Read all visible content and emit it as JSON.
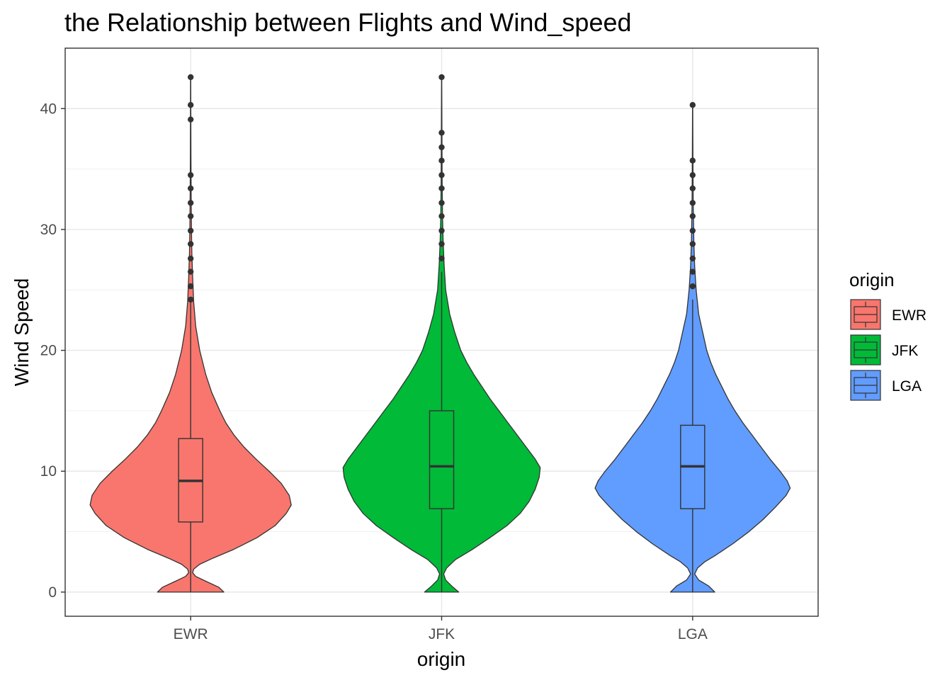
{
  "chart_data": {
    "type": "violin",
    "title": "the Relationship between Flights and Wind_speed",
    "xlabel": "origin",
    "ylabel": "Wind Speed",
    "ylim": [
      -2,
      45
    ],
    "yticks": [
      0,
      10,
      20,
      30,
      40
    ],
    "grid": true,
    "legend": {
      "title": "origin",
      "position": "right"
    },
    "categories": [
      "EWR",
      "JFK",
      "LGA"
    ],
    "series": [
      {
        "name": "EWR",
        "color": "#F8766D",
        "box": {
          "q1": 5.8,
          "median": 9.2,
          "q3": 12.7,
          "whisker_low": 0,
          "whisker_high": 24.2
        },
        "outliers": [
          24.2,
          25.3,
          26.5,
          27.6,
          28.8,
          29.9,
          31.1,
          32.2,
          33.4,
          34.5,
          39.1,
          40.3,
          42.6
        ],
        "density": [
          [
            0,
            0.33
          ],
          [
            0.4,
            0.28
          ],
          [
            0.9,
            0.15
          ],
          [
            1.3,
            0.05
          ],
          [
            1.6,
            0.02
          ],
          [
            1.9,
            0.03
          ],
          [
            2.3,
            0.09
          ],
          [
            2.8,
            0.22
          ],
          [
            3.5,
            0.42
          ],
          [
            4.5,
            0.66
          ],
          [
            5.5,
            0.84
          ],
          [
            6.5,
            0.95
          ],
          [
            7.2,
            1.0
          ],
          [
            8.0,
            0.98
          ],
          [
            9.0,
            0.9
          ],
          [
            10.0,
            0.78
          ],
          [
            11.0,
            0.65
          ],
          [
            12.0,
            0.53
          ],
          [
            13.0,
            0.43
          ],
          [
            14.0,
            0.35
          ],
          [
            15.0,
            0.29
          ],
          [
            16.5,
            0.21
          ],
          [
            18.0,
            0.15
          ],
          [
            20.0,
            0.09
          ],
          [
            22.0,
            0.05
          ],
          [
            24.0,
            0.03
          ],
          [
            26.0,
            0.02
          ],
          [
            28.0,
            0.012
          ],
          [
            30.0,
            0.008
          ],
          [
            33.0,
            0.005
          ],
          [
            36.0,
            0.003
          ],
          [
            39.0,
            0.002
          ],
          [
            42.6,
            0.001
          ]
        ]
      },
      {
        "name": "JFK",
        "color": "#00BA38",
        "box": {
          "q1": 6.9,
          "median": 10.4,
          "q3": 15.0,
          "whisker_low": 0,
          "whisker_high": 26.5
        },
        "outliers": [
          27.6,
          28.8,
          29.9,
          31.1,
          32.2,
          33.4,
          34.5,
          35.7,
          36.8,
          38.0,
          42.6
        ],
        "density": [
          [
            0,
            0.17
          ],
          [
            0.5,
            0.1
          ],
          [
            1.0,
            0.04
          ],
          [
            1.5,
            0.02
          ],
          [
            2.0,
            0.05
          ],
          [
            2.7,
            0.14
          ],
          [
            3.5,
            0.3
          ],
          [
            4.5,
            0.48
          ],
          [
            5.5,
            0.65
          ],
          [
            6.5,
            0.78
          ],
          [
            7.5,
            0.87
          ],
          [
            8.5,
            0.93
          ],
          [
            9.5,
            0.97
          ],
          [
            10.3,
            0.98
          ],
          [
            11.0,
            0.93
          ],
          [
            12.0,
            0.84
          ],
          [
            13.0,
            0.75
          ],
          [
            14.0,
            0.66
          ],
          [
            15.0,
            0.57
          ],
          [
            16.0,
            0.48
          ],
          [
            17.0,
            0.4
          ],
          [
            18.0,
            0.32
          ],
          [
            19.0,
            0.25
          ],
          [
            20.0,
            0.19
          ],
          [
            21.5,
            0.13
          ],
          [
            23.0,
            0.08
          ],
          [
            25.0,
            0.04
          ],
          [
            27.0,
            0.025
          ],
          [
            29.0,
            0.015
          ],
          [
            31.0,
            0.009
          ],
          [
            34.0,
            0.005
          ],
          [
            38.0,
            0.003
          ],
          [
            42.6,
            0.001
          ]
        ]
      },
      {
        "name": "LGA",
        "color": "#619CFF",
        "box": {
          "q1": 6.9,
          "median": 10.4,
          "q3": 13.8,
          "whisker_low": 0,
          "whisker_high": 24.2
        },
        "outliers": [
          25.3,
          26.5,
          27.6,
          28.8,
          29.9,
          31.1,
          32.2,
          33.4,
          34.5,
          35.7,
          40.3
        ],
        "density": [
          [
            0,
            0.22
          ],
          [
            0.5,
            0.16
          ],
          [
            1.0,
            0.06
          ],
          [
            1.5,
            0.02
          ],
          [
            2.0,
            0.05
          ],
          [
            2.5,
            0.12
          ],
          [
            3.0,
            0.22
          ],
          [
            4.0,
            0.4
          ],
          [
            5.0,
            0.56
          ],
          [
            6.0,
            0.7
          ],
          [
            7.0,
            0.82
          ],
          [
            8.0,
            0.93
          ],
          [
            8.6,
            0.97
          ],
          [
            9.2,
            0.94
          ],
          [
            10.0,
            0.87
          ],
          [
            11.0,
            0.77
          ],
          [
            12.0,
            0.68
          ],
          [
            13.0,
            0.59
          ],
          [
            14.0,
            0.5
          ],
          [
            15.0,
            0.42
          ],
          [
            16.0,
            0.35
          ],
          [
            17.0,
            0.29
          ],
          [
            18.0,
            0.23
          ],
          [
            19.0,
            0.18
          ],
          [
            20.0,
            0.14
          ],
          [
            21.5,
            0.1
          ],
          [
            23.0,
            0.06
          ],
          [
            25.0,
            0.035
          ],
          [
            27.0,
            0.02
          ],
          [
            29.0,
            0.012
          ],
          [
            32.0,
            0.006
          ],
          [
            36.0,
            0.003
          ],
          [
            40.3,
            0.001
          ]
        ]
      }
    ]
  }
}
